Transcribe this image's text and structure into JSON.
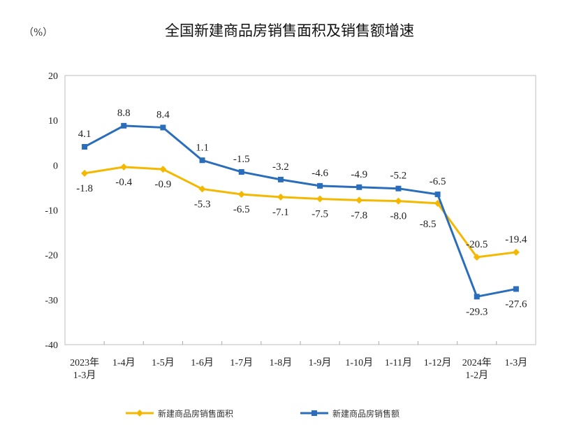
{
  "chart_data": {
    "type": "line",
    "title": "全国新建商品房销售面积及销售额增速",
    "ylabel": "（%）",
    "xlabel": "",
    "categories": [
      "2023年\n1-3月",
      "1-4月",
      "1-5月",
      "1-6月",
      "1-7月",
      "1-8月",
      "1-9月",
      "1-10月",
      "1-11月",
      "1-12月",
      "2024年\n1-2月",
      "1-3月"
    ],
    "ylim": [
      -40,
      20
    ],
    "yticks": [
      20,
      10,
      0,
      -10,
      -20,
      -30,
      -40
    ],
    "grid": false,
    "legend": "bottom",
    "series": [
      {
        "name": "新建商品房销售面积",
        "color": "#F5B800",
        "marker": "diamond",
        "values": [
          -1.8,
          -0.4,
          -0.9,
          -5.3,
          -6.5,
          -7.1,
          -7.5,
          -7.8,
          -8.0,
          -8.5,
          -20.5,
          -19.4
        ]
      },
      {
        "name": "新建商品房销售额",
        "color": "#2A6EBB",
        "marker": "square",
        "values": [
          4.1,
          8.8,
          8.4,
          1.1,
          -1.5,
          -3.2,
          -4.6,
          -4.9,
          -5.2,
          -6.5,
          -29.3,
          -27.6
        ]
      }
    ]
  }
}
